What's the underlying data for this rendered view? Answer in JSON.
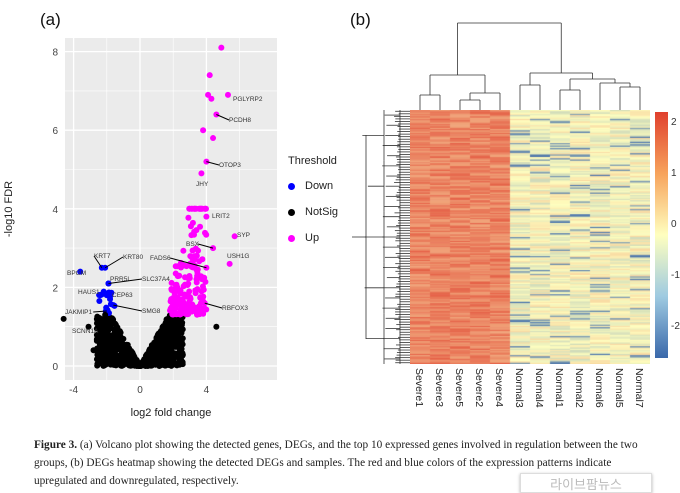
{
  "panel_a": {
    "label": "(a)",
    "chart_data": {
      "type": "scatter",
      "xlabel": "log2 fold change",
      "ylabel": "-log10 FDR",
      "xlim": [
        -5,
        8
      ],
      "ylim": [
        -0.3,
        8.3
      ],
      "xticks": [
        "-4",
        "0",
        "4"
      ],
      "yticks": [
        "0",
        "2",
        "4",
        "6",
        "8"
      ],
      "grid": true,
      "legend": {
        "title": "Threshold",
        "placement": "right",
        "entries": [
          {
            "name": "Down",
            "color": "#0000ff"
          },
          {
            "name": "NotSig",
            "color": "#000000"
          },
          {
            "name": "Up",
            "color": "#ff00ff"
          }
        ]
      },
      "labeled_points": [
        {
          "gene": "PGLYRP2",
          "x": 5.3,
          "y": 6.9,
          "group": "Up"
        },
        {
          "gene": "PCDH8",
          "x": 4.6,
          "y": 6.4,
          "group": "Up"
        },
        {
          "gene": "OTOP3",
          "x": 4.0,
          "y": 5.2,
          "group": "Up"
        },
        {
          "gene": "JHY",
          "x": 3.7,
          "y": 4.9,
          "group": "Up"
        },
        {
          "gene": "LRIT2",
          "x": 4.0,
          "y": 3.8,
          "group": "Up"
        },
        {
          "gene": "SYP",
          "x": 5.7,
          "y": 3.3,
          "group": "Up"
        },
        {
          "gene": "BSX",
          "x": 4.4,
          "y": 3.0,
          "group": "Up"
        },
        {
          "gene": "USH1G",
          "x": 5.4,
          "y": 2.6,
          "group": "Up"
        },
        {
          "gene": "FADS6",
          "x": 4.0,
          "y": 2.5,
          "group": "Up"
        },
        {
          "gene": "RBFOX3",
          "x": 3.9,
          "y": 1.6,
          "group": "Up"
        },
        {
          "gene": "KRT7",
          "x": -2.3,
          "y": 2.5,
          "group": "Down"
        },
        {
          "gene": "KRT80",
          "x": -2.1,
          "y": 2.5,
          "group": "Down"
        },
        {
          "gene": "BPGM",
          "x": -3.6,
          "y": 2.4,
          "group": "Down"
        },
        {
          "gene": "PRR5L",
          "x": -1.9,
          "y": 2.1,
          "group": "Down"
        },
        {
          "gene": "SLC37A4",
          "x": -1.9,
          "y": 2.1,
          "group": "Down"
        },
        {
          "gene": "HAUS1",
          "x": -2.4,
          "y": 1.8,
          "group": "Down"
        },
        {
          "gene": "CEP63",
          "x": -2.0,
          "y": 1.8,
          "group": "Down"
        },
        {
          "gene": "JAKMIP1",
          "x": -2.0,
          "y": 1.4,
          "group": "Down"
        },
        {
          "gene": "SMG8",
          "x": -1.6,
          "y": 1.55,
          "group": "Down"
        },
        {
          "gene": "SCNN1A",
          "x": -2.1,
          "y": 1.3,
          "group": "NotSig"
        }
      ]
    }
  },
  "panel_b": {
    "label": "(b)",
    "chart_data": {
      "type": "heatmap",
      "columns": [
        "Severe1",
        "Severe3",
        "Severe5",
        "Severe2",
        "Severe4",
        "Normal3",
        "Normal4",
        "Normal1",
        "Normal2",
        "Normal6",
        "Normal5",
        "Normal7"
      ],
      "colorbar_ticks": [
        "2",
        "1",
        "0",
        "-1",
        "-2"
      ],
      "colorscale": [
        "#3a68aa",
        "#ffffbf",
        "#e0402e"
      ]
    }
  },
  "caption": {
    "figure": "Figure 3.",
    "text": " (a) Volcano plot showing the detected genes, DEGs, and the top 10 expressed genes involved in regulation between the two groups, (b) DEGs heatmap showing the detected DEGs and samples. The red and blue colors of the expression patterns indicate upregulated and downregulated, respectively."
  },
  "watermark": "라이브팜뉴스"
}
